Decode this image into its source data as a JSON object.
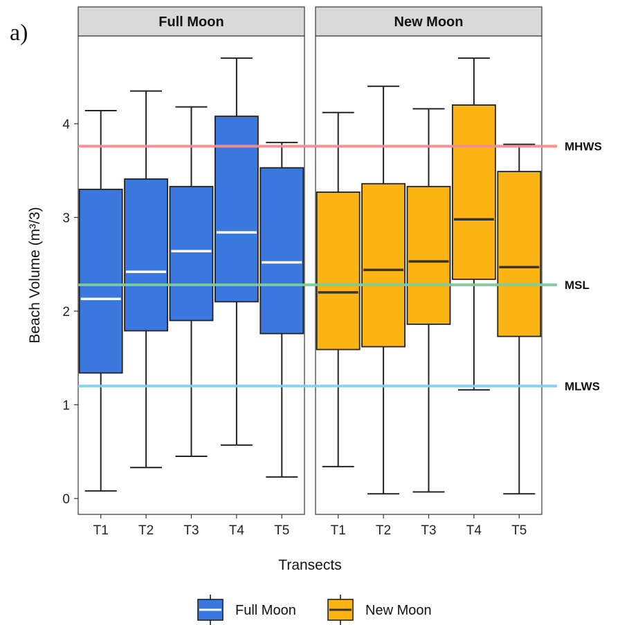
{
  "panel_tag": "a)",
  "chart_data": {
    "type": "boxplot",
    "ylabel": "Beach Volume (m³/3)",
    "xlabel": "Transects",
    "ylim": [
      -0.15,
      5.0
    ],
    "yticks": [
      0,
      1,
      2,
      3,
      4
    ],
    "grid": false,
    "legend_position": "bottom",
    "categories": [
      "T1",
      "T2",
      "T3",
      "T4",
      "T5"
    ],
    "panels": [
      {
        "name": "Full Moon",
        "color": "#3a78e0",
        "median_color": "#ffffff",
        "boxes": [
          {
            "x": "T1",
            "min": 0.08,
            "q1": 1.34,
            "median": 2.13,
            "q3": 3.3,
            "max": 4.14
          },
          {
            "x": "T2",
            "min": 0.33,
            "q1": 1.79,
            "median": 2.42,
            "q3": 3.41,
            "max": 4.35
          },
          {
            "x": "T3",
            "min": 0.45,
            "q1": 1.9,
            "median": 2.64,
            "q3": 3.33,
            "max": 4.18
          },
          {
            "x": "T4",
            "min": 0.57,
            "q1": 2.1,
            "median": 2.84,
            "q3": 4.08,
            "max": 4.7
          },
          {
            "x": "T5",
            "min": 0.23,
            "q1": 1.76,
            "median": 2.52,
            "q3": 3.53,
            "max": 3.8
          }
        ]
      },
      {
        "name": "New Moon",
        "color": "#fcb414",
        "median_color": "#333333",
        "boxes": [
          {
            "x": "T1",
            "min": 0.34,
            "q1": 1.59,
            "median": 2.2,
            "q3": 3.27,
            "max": 4.12
          },
          {
            "x": "T2",
            "min": 0.05,
            "q1": 1.62,
            "median": 2.44,
            "q3": 3.36,
            "max": 4.4
          },
          {
            "x": "T3",
            "min": 0.07,
            "q1": 1.86,
            "median": 2.53,
            "q3": 3.33,
            "max": 4.16
          },
          {
            "x": "T4",
            "min": 1.16,
            "q1": 2.34,
            "median": 2.98,
            "q3": 4.2,
            "max": 4.7
          },
          {
            "x": "T5",
            "min": 0.05,
            "q1": 1.73,
            "median": 2.47,
            "q3": 3.49,
            "max": 3.78
          }
        ]
      }
    ],
    "reference_lines": [
      {
        "label": "MHWS",
        "value": 3.76,
        "color": "#f28b8f"
      },
      {
        "label": "MSL",
        "value": 2.28,
        "color": "#7cce9a"
      },
      {
        "label": "MLWS",
        "value": 1.2,
        "color": "#7fd0ee"
      }
    ],
    "legend": [
      {
        "label": "Full Moon",
        "color": "#3a78e0",
        "median_color": "#ffffff"
      },
      {
        "label": "New Moon",
        "color": "#fcb414",
        "median_color": "#333333"
      }
    ]
  }
}
